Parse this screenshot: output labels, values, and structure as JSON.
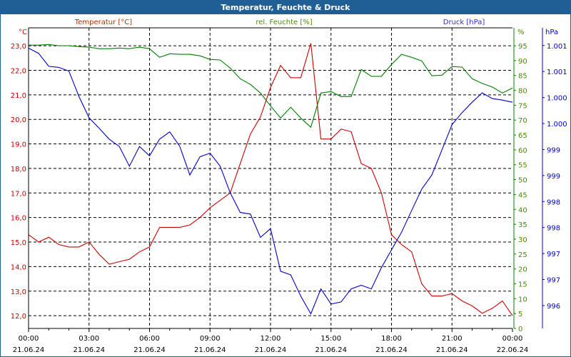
{
  "window": {
    "title": "Temperatur, Feuchte & Druck"
  },
  "colors": {
    "temperature": "#cc0000",
    "humidity": "#008000",
    "pressure": "#0000cc",
    "titlebar": "#1f5f96"
  },
  "chart_data": {
    "type": "line",
    "title": "Temperatur, Feuchte & Druck",
    "x_tick_labels": [
      {
        "time": "00:00",
        "date": "21.06.24"
      },
      {
        "time": "03:00",
        "date": "21.06.24"
      },
      {
        "time": "06:00",
        "date": "21.06.24"
      },
      {
        "time": "09:00",
        "date": "21.06.24"
      },
      {
        "time": "12:00",
        "date": "21.06.24"
      },
      {
        "time": "15:00",
        "date": "21.06.24"
      },
      {
        "time": "18:00",
        "date": "21.06.24"
      },
      {
        "time": "21:00",
        "date": "21.06.24"
      },
      {
        "time": "00:00",
        "date": "22.06.24"
      }
    ],
    "x_range_hours": [
      0,
      24
    ],
    "x_step_hours": 0.5,
    "grid": true,
    "axes": {
      "temperature": {
        "label": "Temperatur [°C]",
        "unit": "°C",
        "range": [
          11.48,
          23.73
        ],
        "ticks": [
          {
            "v": 23,
            "t": "23,0"
          },
          {
            "v": 22,
            "t": "22,0"
          },
          {
            "v": 21,
            "t": "21,0"
          },
          {
            "v": 20,
            "t": "20,0"
          },
          {
            "v": 19,
            "t": "19,0"
          },
          {
            "v": 18,
            "t": "18,0"
          },
          {
            "v": 17,
            "t": "17,0"
          },
          {
            "v": 16,
            "t": "16,0"
          },
          {
            "v": 15,
            "t": "15,0"
          },
          {
            "v": 14,
            "t": "14,0"
          },
          {
            "v": 13,
            "t": "13,0"
          },
          {
            "v": 12,
            "t": "12,0"
          }
        ]
      },
      "humidity": {
        "label": "rel. Feuchte [%]",
        "unit": "%",
        "range": [
          0,
          101
        ],
        "ticks": [
          {
            "v": 95,
            "t": "95"
          },
          {
            "v": 90,
            "t": "90"
          },
          {
            "v": 85,
            "t": "85"
          },
          {
            "v": 80,
            "t": "80"
          },
          {
            "v": 75,
            "t": "75"
          },
          {
            "v": 70,
            "t": "70"
          },
          {
            "v": 65,
            "t": "65"
          },
          {
            "v": 60,
            "t": "60"
          },
          {
            "v": 55,
            "t": "55"
          },
          {
            "v": 50,
            "t": "50"
          },
          {
            "v": 45,
            "t": "45"
          },
          {
            "v": 40,
            "t": "40"
          },
          {
            "v": 35,
            "t": "35"
          },
          {
            "v": 30,
            "t": "30"
          },
          {
            "v": 25,
            "t": "25"
          },
          {
            "v": 20,
            "t": "20"
          },
          {
            "v": 15,
            "t": "15"
          },
          {
            "v": 10,
            "t": "10"
          },
          {
            "v": 5,
            "t": "5"
          },
          {
            "v": 0,
            "t": "0"
          }
        ]
      },
      "pressure": {
        "label": "Druck [hPa]",
        "unit": "hPa",
        "range": [
          995.56,
          1001.34
        ],
        "ticks": [
          {
            "v": 1001,
            "t": "1.001"
          },
          {
            "v": 1000.5,
            "t": "1.001"
          },
          {
            "v": 1000,
            "t": "1.000"
          },
          {
            "v": 999.5,
            "t": "1.000"
          },
          {
            "v": 999,
            "t": "999"
          },
          {
            "v": 998.5,
            "t": "999"
          },
          {
            "v": 998,
            "t": "998"
          },
          {
            "v": 997.5,
            "t": "998"
          },
          {
            "v": 997,
            "t": "997"
          },
          {
            "v": 996.5,
            "t": "997"
          },
          {
            "v": 996,
            "t": "996"
          }
        ]
      }
    },
    "series": [
      {
        "name": "Temperatur [°C]",
        "axis": "temperature",
        "values": [
          15.3,
          15.0,
          15.2,
          14.9,
          14.8,
          14.8,
          15.0,
          14.5,
          14.1,
          14.2,
          14.3,
          14.6,
          14.8,
          15.6,
          15.6,
          15.6,
          15.7,
          16.0,
          16.4,
          16.7,
          17.0,
          18.2,
          19.4,
          20.1,
          21.3,
          22.2,
          21.7,
          21.7,
          23.1,
          19.2,
          19.2,
          19.6,
          19.5,
          18.2,
          18.0,
          17.0,
          15.3,
          14.9,
          14.6,
          13.3,
          12.8,
          12.8,
          12.9,
          12.6,
          12.4,
          12.1,
          12.3,
          12.6,
          12.0
        ]
      },
      {
        "name": "rel. Feuchte [%]",
        "axis": "humidity",
        "values": [
          95.2,
          95.2,
          95.4,
          95.0,
          95.0,
          94.7,
          94.5,
          94.0,
          94.0,
          94.2,
          94.0,
          94.5,
          94.0,
          91.1,
          92.3,
          92.1,
          92.1,
          91.6,
          90.4,
          90.2,
          87.5,
          83.9,
          82.0,
          79.1,
          74.8,
          70.7,
          74.3,
          70.7,
          67.6,
          79.1,
          79.6,
          77.9,
          77.9,
          87.0,
          84.7,
          84.7,
          88.7,
          92.1,
          91.1,
          89.9,
          84.9,
          85.1,
          88.0,
          87.8,
          83.9,
          82.3,
          81.1,
          79.1,
          80.8
        ]
      },
      {
        "name": "Druck [hPa]",
        "axis": "pressure",
        "values": [
          1000.95,
          1000.85,
          1000.6,
          1000.58,
          1000.51,
          1000.02,
          999.61,
          999.41,
          999.2,
          999.06,
          998.68,
          999.06,
          998.88,
          999.2,
          999.34,
          999.06,
          998.51,
          998.86,
          998.93,
          998.68,
          998.17,
          997.79,
          997.76,
          997.31,
          997.48,
          996.66,
          996.59,
          996.18,
          995.84,
          996.32,
          996.03,
          996.07,
          996.32,
          996.39,
          996.32,
          996.73,
          997.07,
          997.41,
          997.83,
          998.24,
          998.51,
          998.99,
          999.48,
          999.71,
          999.91,
          1000.09,
          999.98,
          999.95,
          999.91
        ]
      }
    ]
  }
}
